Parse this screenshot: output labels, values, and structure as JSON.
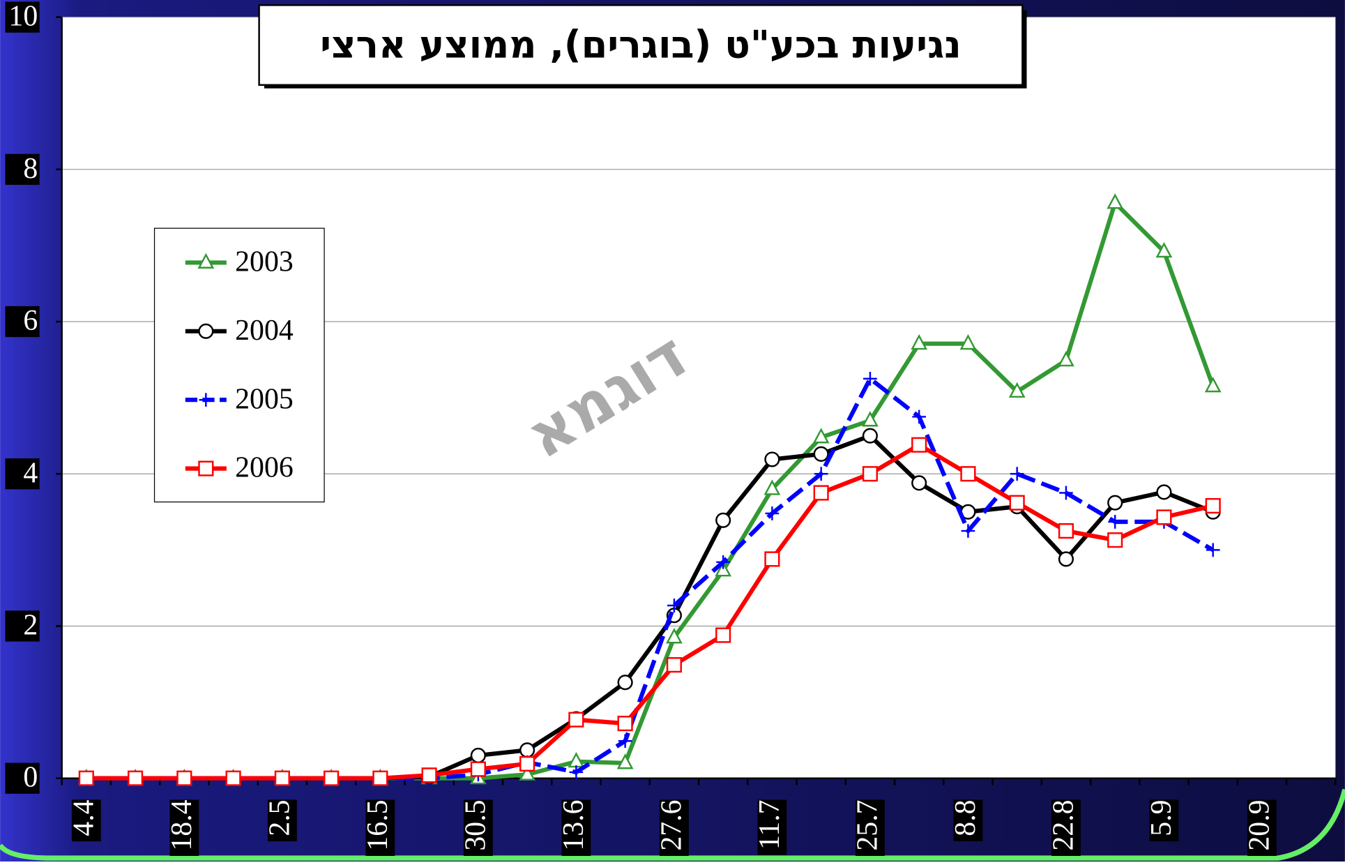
{
  "chart_data": {
    "type": "line",
    "title": "נגיעות בכע\"ט (בוגרים), ממוצע ארצי",
    "watermark": "דוגמא",
    "categories": [
      "4.4",
      null,
      "18.4",
      null,
      "2.5",
      null,
      "16.5",
      null,
      "30.5",
      null,
      "13.6",
      null,
      "27.6",
      null,
      "11.7",
      null,
      "25.7",
      null,
      "8.8",
      null,
      "22.8",
      null,
      "5.9",
      null,
      "20.9",
      null
    ],
    "series": [
      {
        "name": "2003",
        "color": "#339933",
        "marker": "triangle",
        "dash": false,
        "values": [
          0,
          0,
          0,
          0,
          0,
          0,
          0,
          0,
          0,
          0.05,
          0.22,
          0.2,
          1.85,
          2.73,
          3.8,
          4.48,
          4.7,
          5.71,
          5.71,
          5.08,
          5.49,
          7.56,
          6.92,
          5.15,
          null,
          null
        ]
      },
      {
        "name": "2004",
        "color": "#000000",
        "marker": "circle",
        "dash": false,
        "values": [
          0,
          0,
          0,
          0,
          0,
          0,
          0,
          0.02,
          0.3,
          0.37,
          0.78,
          1.26,
          2.14,
          3.39,
          4.19,
          4.26,
          4.5,
          3.88,
          3.5,
          3.57,
          2.88,
          3.62,
          3.76,
          3.5,
          null,
          null
        ]
      },
      {
        "name": "2005",
        "color": "#0000ff",
        "marker": "plus",
        "dash": true,
        "values": [
          0,
          0,
          0,
          0,
          0,
          0,
          0,
          0,
          0.05,
          0.21,
          0.08,
          0.49,
          2.27,
          2.84,
          3.48,
          4.0,
          5.25,
          4.75,
          3.25,
          4.0,
          3.75,
          3.37,
          3.37,
          3.0,
          null,
          null
        ]
      },
      {
        "name": "2006",
        "color": "#ff0000",
        "marker": "square",
        "dash": false,
        "values": [
          0,
          0,
          0,
          0,
          0,
          0,
          0,
          0.04,
          0.12,
          0.19,
          0.77,
          0.72,
          1.49,
          1.88,
          2.88,
          3.75,
          4.0,
          4.38,
          4.0,
          3.62,
          3.25,
          3.13,
          3.43,
          3.58,
          null,
          null
        ]
      }
    ],
    "ylim": [
      0,
      10
    ],
    "yticks": [
      0,
      2,
      4,
      6,
      8,
      10
    ],
    "grid": true,
    "legend": "left"
  }
}
